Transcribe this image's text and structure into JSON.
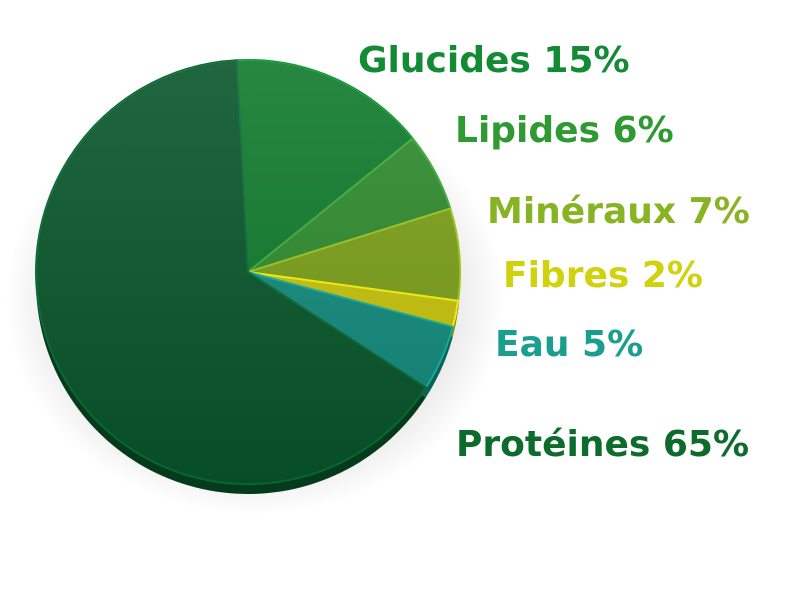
{
  "chart_data": {
    "type": "pie",
    "title": "",
    "slices": [
      {
        "label": "Glucides 15%",
        "value": 15,
        "color": "#0f7a2c",
        "label_color": "#138a34"
      },
      {
        "label": "Lipides 6%",
        "value": 6,
        "color": "#2e8a2c",
        "label_color": "#2f9a32"
      },
      {
        "label": "Minéraux 7%",
        "value": 7,
        "color": "#7a9e18",
        "label_color": "#88b423"
      },
      {
        "label": "Fibres 2%",
        "value": 2,
        "color": "#c7c30a",
        "label_color": "#d1d20e"
      },
      {
        "label": "Eau 5%",
        "value": 5,
        "color": "#118a7c",
        "label_color": "#1a9f8f"
      },
      {
        "label": "Protéines 65%",
        "value": 65,
        "color": "#07552a",
        "label_color": "#0d6b2c"
      }
    ]
  }
}
